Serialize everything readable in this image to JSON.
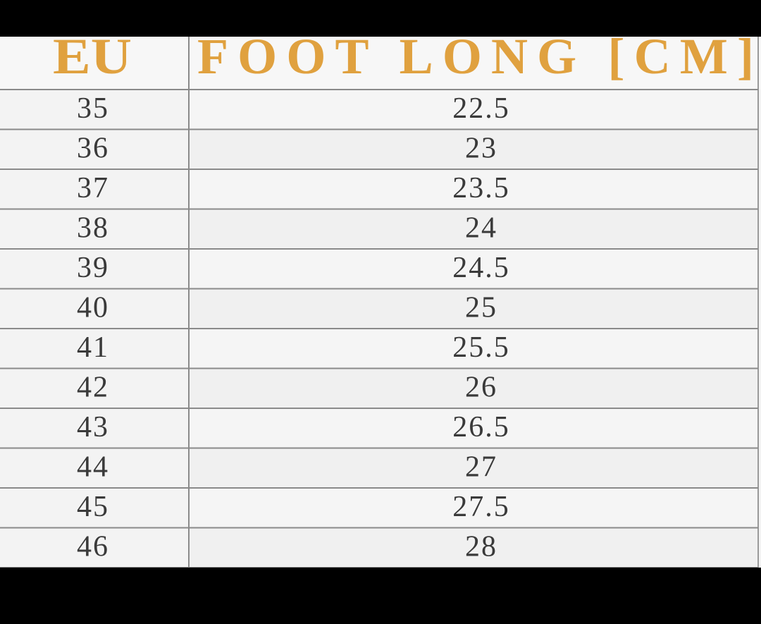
{
  "table": {
    "header": [
      "EU",
      "FOOT LONG [CM]"
    ],
    "rows": [
      [
        "35",
        "22.5"
      ],
      [
        "36",
        "23"
      ],
      [
        "37",
        "23.5"
      ],
      [
        "38",
        "24"
      ],
      [
        "39",
        "24.5"
      ],
      [
        "40",
        "25"
      ],
      [
        "41",
        "25.5"
      ],
      [
        "42",
        "26"
      ],
      [
        "43",
        "26.5"
      ],
      [
        "44",
        "27"
      ],
      [
        "45",
        "27.5"
      ],
      [
        "46",
        "28"
      ]
    ]
  }
}
